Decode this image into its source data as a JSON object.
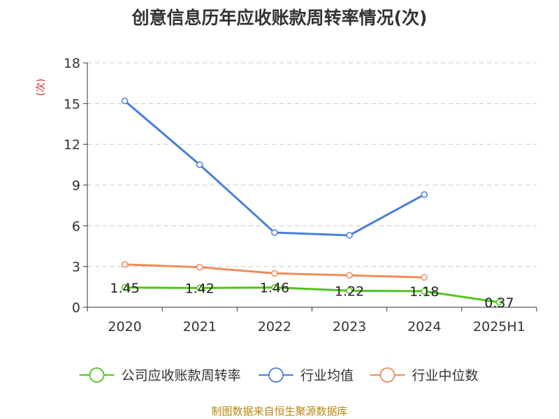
{
  "chart_data": {
    "type": "line",
    "title": "创意信息历年应收账款周转率情况(次)",
    "ylabel": "(次)",
    "categories": [
      "2020",
      "2021",
      "2022",
      "2023",
      "2024",
      "2025H1"
    ],
    "ylim": [
      0,
      18
    ],
    "yticks": [
      0,
      3,
      6,
      9,
      12,
      15,
      18
    ],
    "grid": true,
    "legend_position": "bottom",
    "series": [
      {
        "name": "公司应收账款周转率",
        "color": "#52c41a",
        "values": [
          1.45,
          1.42,
          1.46,
          1.22,
          1.18,
          0.37
        ],
        "labels": [
          "1.45",
          "1.42",
          "1.46",
          "1.22",
          "1.18",
          "0.37"
        ]
      },
      {
        "name": "行业均值",
        "color": "#4a7fd8",
        "values": [
          15.2,
          10.5,
          5.5,
          5.3,
          8.3,
          null
        ]
      },
      {
        "name": "行业中位数",
        "color": "#f08c5a",
        "values": [
          3.15,
          2.95,
          2.5,
          2.35,
          2.2,
          null
        ]
      }
    ]
  },
  "source_note": "制图数据来自恒生聚源数据库"
}
